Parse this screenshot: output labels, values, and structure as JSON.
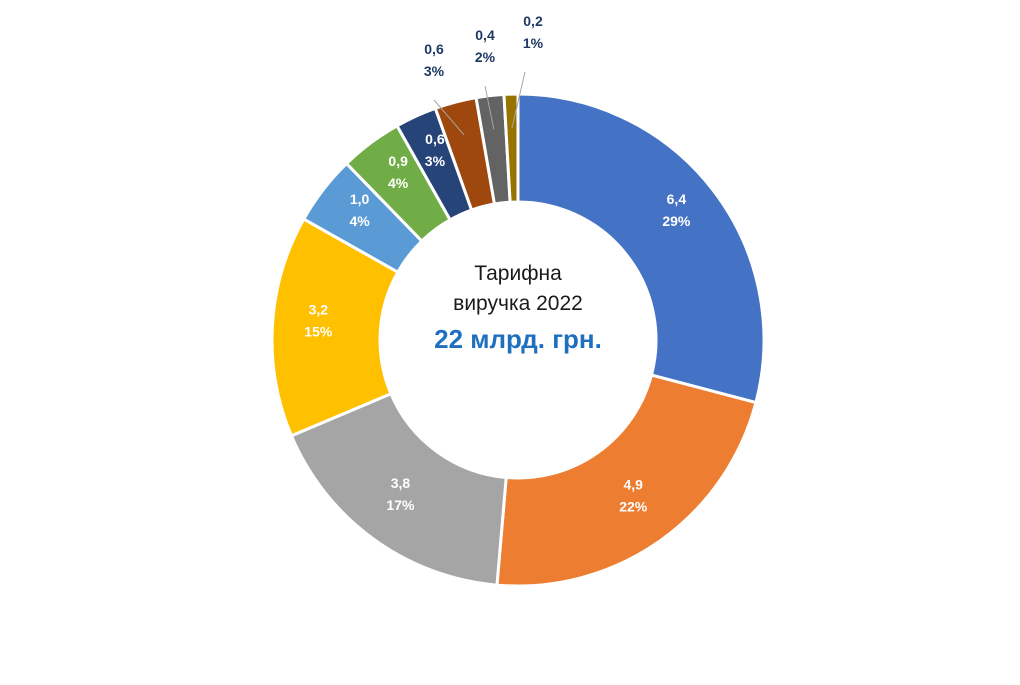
{
  "chart_data": {
    "type": "pie",
    "style": "donut",
    "center_title_line1": "Тарифна",
    "center_title_line2": "виручка 2022",
    "center_total": "22 млрд. грн.",
    "center_total_color": "#1F6FBF",
    "slices": [
      {
        "value": 6.4,
        "value_label": "6,4",
        "pct_label": "29%",
        "color": "#4472C4",
        "label_color": "#FFFFFF",
        "outside": false
      },
      {
        "value": 4.9,
        "value_label": "4,9",
        "pct_label": "22%",
        "color": "#ED7D31",
        "label_color": "#FFFFFF",
        "outside": false
      },
      {
        "value": 3.8,
        "value_label": "3,8",
        "pct_label": "17%",
        "color": "#A5A5A5",
        "label_color": "#FFFFFF",
        "outside": false
      },
      {
        "value": 3.2,
        "value_label": "3,2",
        "pct_label": "15%",
        "color": "#FFC000",
        "label_color": "#FFFFFF",
        "outside": false
      },
      {
        "value": 1.0,
        "value_label": "1,0",
        "pct_label": "4%",
        "color": "#5B9BD5",
        "label_color": "#FFFFFF",
        "outside": false
      },
      {
        "value": 0.9,
        "value_label": "0,9",
        "pct_label": "4%",
        "color": "#70AD47",
        "label_color": "#FFFFFF",
        "outside": false
      },
      {
        "value": 0.6,
        "value_label": "0,6",
        "pct_label": "3%",
        "color": "#264478",
        "label_color": "#FFFFFF",
        "outside": false
      },
      {
        "value": 0.6,
        "value_label": "0,6",
        "pct_label": "3%",
        "color": "#9E480E",
        "label_color": "#1F3864",
        "outside": true
      },
      {
        "value": 0.4,
        "value_label": "0,4",
        "pct_label": "2%",
        "color": "#636363",
        "label_color": "#1F3864",
        "outside": true
      },
      {
        "value": 0.2,
        "value_label": "0,2",
        "pct_label": "1%",
        "color": "#997300",
        "label_color": "#1F3864",
        "outside": true
      }
    ]
  }
}
